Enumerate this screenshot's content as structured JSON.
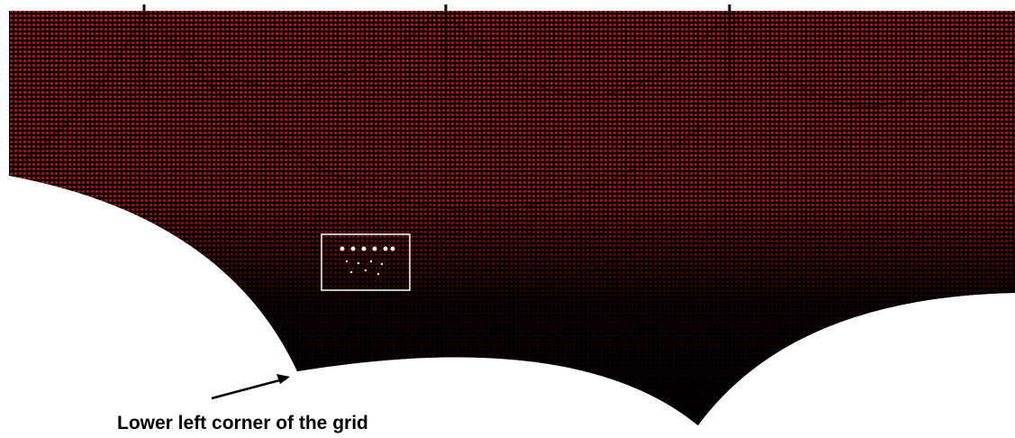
{
  "annotation": {
    "text": "Lower left corner of the grid"
  }
}
